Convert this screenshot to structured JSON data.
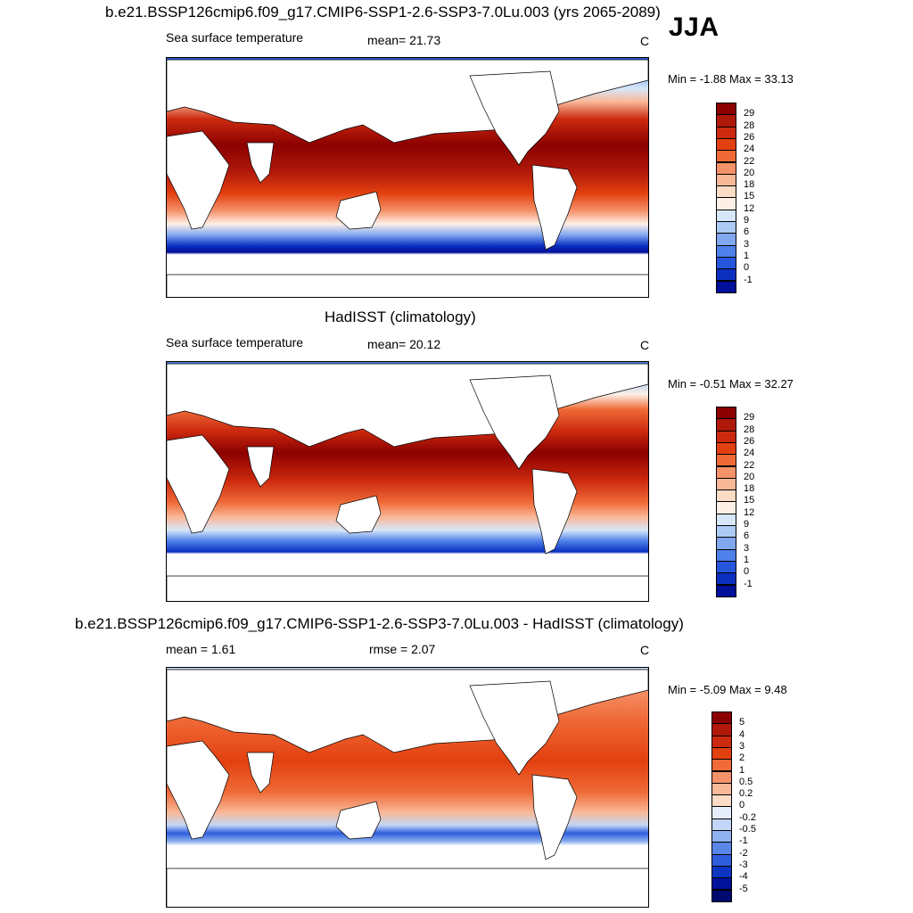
{
  "season": "JJA",
  "panels": [
    {
      "title": "b.e21.BSSP126cmip6.f09_g17.CMIP6-SSP1-2.6-SSP3-7.0Lu.003 (yrs 2065-2089)",
      "left_label": "Sea surface temperature",
      "mid_label": "mean=  21.73",
      "units": "C",
      "minmax": "Min =  -1.88 Max =  33.13",
      "colorbar": {
        "labels": [
          "29",
          "28",
          "26",
          "24",
          "22",
          "20",
          "18",
          "15",
          "12",
          "9",
          "6",
          "3",
          "1",
          "0",
          "-1"
        ],
        "colors": [
          "#8b0000",
          "#b0190a",
          "#cc2a0e",
          "#e3400f",
          "#ef6a37",
          "#f5926a",
          "#f9b898",
          "#fcdcc6",
          "#fdf0e6",
          "#d6e7fa",
          "#adcbf5",
          "#81a8ef",
          "#4f80ea",
          "#2656de",
          "#0a30c0",
          "#00109a"
        ]
      }
    },
    {
      "title": "HadISST (climatology)",
      "left_label": "Sea surface temperature",
      "mid_label": "mean=  20.12",
      "units": "C",
      "minmax": "Min =  -0.51 Max =  32.27",
      "colorbar": {
        "labels": [
          "29",
          "28",
          "26",
          "24",
          "22",
          "20",
          "18",
          "15",
          "12",
          "9",
          "6",
          "3",
          "1",
          "0",
          "-1"
        ],
        "colors": [
          "#8b0000",
          "#b0190a",
          "#cc2a0e",
          "#e3400f",
          "#ef6a37",
          "#f5926a",
          "#f9b898",
          "#fcdcc6",
          "#fdf0e6",
          "#d6e7fa",
          "#adcbf5",
          "#81a8ef",
          "#4f80ea",
          "#2656de",
          "#0a30c0",
          "#00109a"
        ]
      }
    },
    {
      "title": "b.e21.BSSP126cmip6.f09_g17.CMIP6-SSP1-2.6-SSP3-7.0Lu.003 - HadISST (climatology)",
      "left_label": "mean =   1.61",
      "mid_label": "rmse =   2.07",
      "units": "C",
      "minmax": "Min =  -5.09 Max =   9.48",
      "colorbar": {
        "labels": [
          "5",
          "4",
          "3",
          "2",
          "1",
          "0.5",
          "0.2",
          "0",
          "-0.2",
          "-0.5",
          "-1",
          "-2",
          "-3",
          "-4",
          "-5"
        ],
        "colors": [
          "#8b0000",
          "#b0190a",
          "#cc2a0e",
          "#e3400f",
          "#ef6a37",
          "#f5926a",
          "#f9b898",
          "#fcdcc6",
          "#e6eefb",
          "#c3d6f7",
          "#8fb1f0",
          "#5a86e8",
          "#2f5edc",
          "#0c35c2",
          "#00129c",
          "#000a6e"
        ]
      }
    }
  ]
}
